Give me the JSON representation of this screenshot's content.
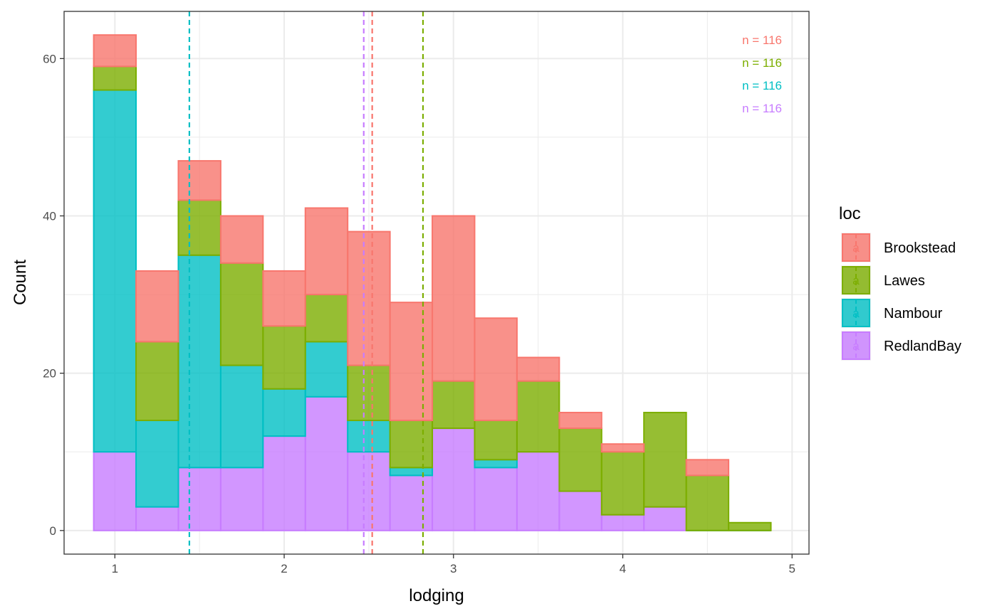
{
  "chart_data": {
    "type": "bar",
    "subtype": "stacked histogram",
    "xlabel": "lodging",
    "ylabel": "Count",
    "xlim": [
      0.7,
      5.1
    ],
    "ylim": [
      -3,
      66
    ],
    "x_ticks": [
      1,
      2,
      3,
      4,
      5
    ],
    "y_ticks": [
      0,
      20,
      40,
      60
    ],
    "grid": true,
    "bin_edges": [
      0.875,
      1.125,
      1.375,
      1.625,
      1.875,
      2.125,
      2.375,
      2.625,
      2.875,
      3.125,
      3.375,
      3.625,
      3.875,
      4.125,
      4.375,
      4.625,
      4.875
    ],
    "stack_order": [
      "RedlandBay",
      "Nambour",
      "Lawes",
      "Brookstead"
    ],
    "series": [
      {
        "name": "Brookstead",
        "color": "#F8766D",
        "values": [
          4,
          9,
          5,
          6,
          7,
          11,
          17,
          15,
          21,
          13,
          3,
          2,
          1,
          0,
          2,
          0
        ],
        "mean_line": 2.52
      },
      {
        "name": "Lawes",
        "color": "#7CAE00",
        "values": [
          3,
          10,
          7,
          13,
          8,
          6,
          7,
          6,
          6,
          5,
          9,
          8,
          8,
          12,
          7,
          1
        ],
        "mean_line": 2.82
      },
      {
        "name": "Nambour",
        "color": "#00BFC4",
        "values": [
          46,
          11,
          27,
          13,
          6,
          7,
          4,
          1,
          0,
          1,
          0,
          0,
          0,
          0,
          0,
          0
        ],
        "mean_line": 1.44
      },
      {
        "name": "RedlandBay",
        "color": "#C77CFF",
        "values": [
          10,
          3,
          8,
          8,
          12,
          17,
          10,
          7,
          13,
          8,
          10,
          5,
          2,
          3,
          0,
          0
        ],
        "mean_line": 2.47
      }
    ],
    "annotations": [
      "n = 116",
      "n = 116",
      "n = 116",
      "n = 116"
    ],
    "legend": {
      "title": "loc",
      "placement": "right",
      "key_glyph": "a",
      "items": [
        "Brookstead",
        "Lawes",
        "Nambour",
        "RedlandBay"
      ]
    }
  }
}
